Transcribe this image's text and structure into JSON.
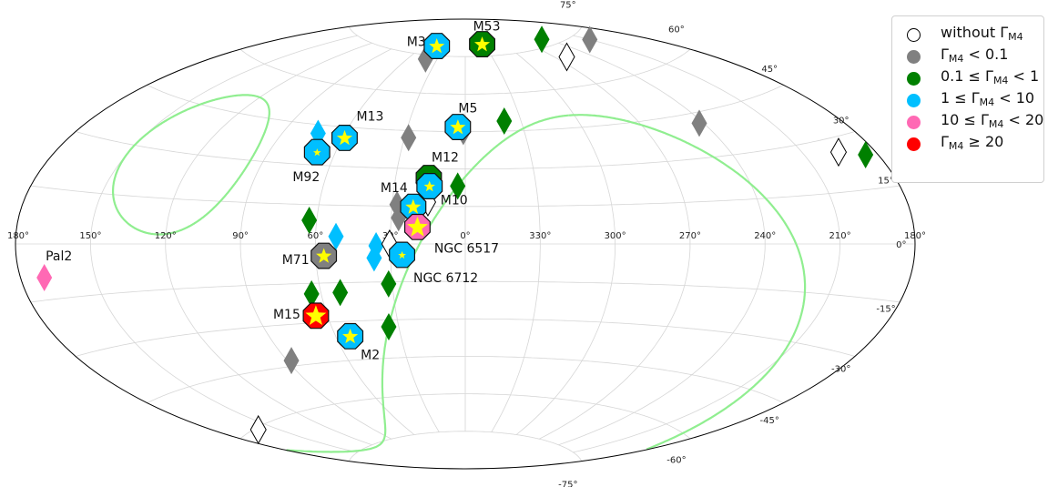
{
  "chart_data": {
    "type": "scatter",
    "projection": "aitoff",
    "coordinates": "galactic (l, b) in degrees, longitude increasing to the left",
    "grid": true,
    "legend_position": "top-right",
    "lon_ticks": [
      {
        "value": 180,
        "label": "180°",
        "side": "left"
      },
      {
        "value": 150,
        "label": "150°"
      },
      {
        "value": 120,
        "label": "120°"
      },
      {
        "value": 90,
        "label": "90°"
      },
      {
        "value": 60,
        "label": "60°"
      },
      {
        "value": 30,
        "label": "30°"
      },
      {
        "value": 0,
        "label": "0°"
      },
      {
        "value": 330,
        "label": "330°"
      },
      {
        "value": 300,
        "label": "300°"
      },
      {
        "value": 270,
        "label": "270°"
      },
      {
        "value": 240,
        "label": "240°"
      },
      {
        "value": 210,
        "label": "210°"
      },
      {
        "value": 180,
        "label": "180°",
        "side": "right"
      }
    ],
    "lat_ticks": [
      {
        "value": 75,
        "label": "75°"
      },
      {
        "value": 60,
        "label": "60°"
      },
      {
        "value": 45,
        "label": "45°"
      },
      {
        "value": 30,
        "label": "30°"
      },
      {
        "value": 15,
        "label": "15°"
      },
      {
        "value": 0,
        "label": "0°"
      },
      {
        "value": -15,
        "label": "-15°"
      },
      {
        "value": -30,
        "label": "-30°"
      },
      {
        "value": -45,
        "label": "-45°"
      },
      {
        "value": -60,
        "label": "-60°"
      },
      {
        "value": -75,
        "label": "-75°"
      }
    ],
    "categories": {
      "none": {
        "color": "#ffffff"
      },
      "lt_0.1": {
        "color": "#808080"
      },
      "0.1_1": {
        "color": "#008000"
      },
      "1_10": {
        "color": "#00bfff"
      },
      "10_20": {
        "color": "#ff69b4"
      },
      "ge_20": {
        "color": "#ff0000"
      }
    },
    "curves": [
      {
        "kind": "small-circle",
        "center_l": 122.93,
        "center_b": 27.13,
        "radius_deg": 24,
        "color": "#90ee90"
      },
      {
        "kind": "small-circle",
        "center_l": 302.93,
        "center_b": -27.13,
        "radius_deg": 77,
        "color": "#90ee90"
      }
    ],
    "points": [
      {
        "l": 42,
        "b": 73.3,
        "category": "lt_0.1"
      },
      {
        "l": 210,
        "b": 72.5,
        "category": "lt_0.1"
      },
      {
        "l": 242,
        "b": 41.5,
        "category": "lt_0.1"
      },
      {
        "l": 28,
        "b": 42.2,
        "category": "lt_0.1"
      },
      {
        "l": 1,
        "b": 45,
        "category": "lt_0.1"
      },
      {
        "l": 28,
        "b": 15.6,
        "category": "lt_0.1"
      },
      {
        "l": 27,
        "b": 10.4,
        "category": "lt_0.1"
      },
      {
        "l": 18,
        "b": 24.5,
        "category": "lt_0.1"
      },
      {
        "l": 88,
        "b": -43,
        "category": "lt_0.1"
      },
      {
        "l": 245,
        "b": 77.5,
        "category": "0.1_1"
      },
      {
        "l": 339,
        "b": 49,
        "category": "0.1_1"
      },
      {
        "l": 185,
        "b": 24,
        "category": "0.1_1"
      },
      {
        "l": 3.2,
        "b": 23.2,
        "category": "0.1_1"
      },
      {
        "l": 63,
        "b": 9,
        "category": "0.1_1"
      },
      {
        "l": 31.5,
        "b": -15.8,
        "category": "0.1_1"
      },
      {
        "l": 52,
        "b": -18.8,
        "category": "0.1_1"
      },
      {
        "l": 64,
        "b": -19,
        "category": "0.1_1"
      },
      {
        "l": 34.5,
        "b": -32.7,
        "category": "0.1_1"
      },
      {
        "l": 21.3,
        "b": 7.2,
        "category": "0.1_1"
      },
      {
        "l": 73,
        "b": 41.8,
        "category": "1_10"
      },
      {
        "l": 51.8,
        "b": 2.9,
        "category": "1_10"
      },
      {
        "l": 35.7,
        "b": -0.7,
        "category": "1_10"
      },
      {
        "l": 36.6,
        "b": -5.5,
        "category": "1_10"
      },
      {
        "l": 260,
        "b": 70.5,
        "category": "none"
      },
      {
        "l": 195,
        "b": 26,
        "category": "none"
      },
      {
        "l": 160,
        "b": -60.5,
        "category": "none"
      },
      {
        "l": 30.3,
        "b": 0,
        "category": "none"
      },
      {
        "l": 15.4,
        "b": 16.7,
        "category": "none"
      },
      {
        "l": 170.53,
        "b": -9.07,
        "category": "10_20",
        "name": "Pal2"
      }
    ],
    "clusters": [
      {
        "name": "M3",
        "l": 42.2,
        "b": 78.7,
        "category": "1_10",
        "star": "large"
      },
      {
        "name": "M53",
        "l": 332.96,
        "b": 79.76,
        "category": "0.1_1",
        "star": "large"
      },
      {
        "name": "M5",
        "l": 3.86,
        "b": 46.8,
        "category": "1_10",
        "star": "large"
      },
      {
        "name": "M13",
        "l": 59.01,
        "b": 40.91,
        "category": "1_10",
        "star": "large"
      },
      {
        "name": "M92",
        "l": 68.34,
        "b": 34.86,
        "category": "1_10",
        "star": "small"
      },
      {
        "name": "M12",
        "l": 15.72,
        "b": 26.31,
        "category": "0.1_1",
        "star": "medium"
      },
      {
        "name": "M10",
        "l": 15.14,
        "b": 23.08,
        "category": "1_10",
        "star": "medium"
      },
      {
        "name": "M14",
        "l": 21.32,
        "b": 14.81,
        "category": "1_10",
        "star": "large"
      },
      {
        "name": "NGC 6517",
        "l": 19.23,
        "b": 6.76,
        "category": "10_20",
        "star": "xlarge"
      },
      {
        "name": "NGC 6712",
        "l": 25.35,
        "b": -4.32,
        "category": "1_10",
        "star": "small"
      },
      {
        "name": "M71",
        "l": 56.74,
        "b": -4.56,
        "category": "lt_0.1",
        "star": "large"
      },
      {
        "name": "M15",
        "l": 65.01,
        "b": -27.31,
        "category": "ge_20",
        "star": "xlarge"
      },
      {
        "name": "M2",
        "l": 53.37,
        "b": -35.77,
        "category": "1_10",
        "star": "large"
      }
    ],
    "star_color": "#ffff00"
  },
  "legend": [
    {
      "pre": "without Γ",
      "sub": "M4",
      "post": "",
      "category": "none"
    },
    {
      "pre": "Γ",
      "sub": "M4",
      "post": " < 0.1",
      "category": "lt_0.1"
    },
    {
      "pre": "0.1 ≤ Γ",
      "sub": "M4",
      "post": " < 1",
      "category": "0.1_1"
    },
    {
      "pre": "1 ≤ Γ",
      "sub": "M4",
      "post": " < 10",
      "category": "1_10"
    },
    {
      "pre": "10 ≤ Γ",
      "sub": "M4",
      "post": " < 20",
      "category": "10_20"
    },
    {
      "pre": "Γ",
      "sub": "M4",
      "post": " ≥ 20",
      "category": "ge_20"
    }
  ]
}
